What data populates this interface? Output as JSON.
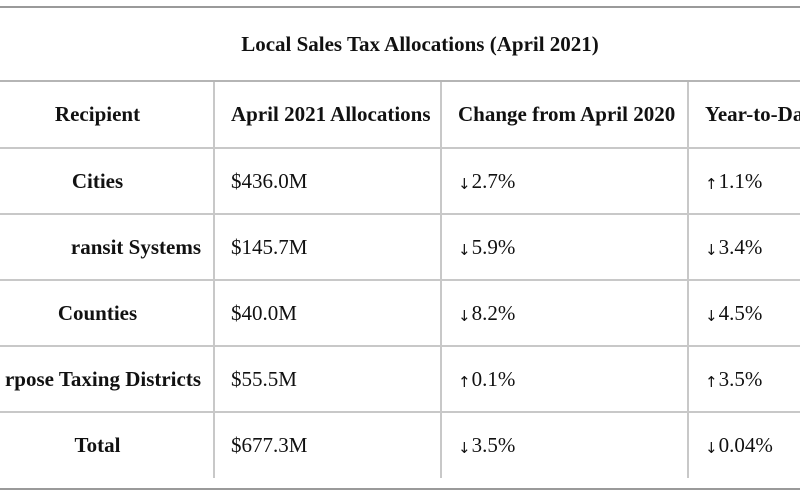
{
  "table": {
    "title": "Local Sales Tax Allocations (April 2021)",
    "headers": [
      "Recipient",
      "April 2021 Allocations",
      "Change from April 2020",
      "Year-to-Da"
    ],
    "rows": [
      {
        "recipient": "Cities",
        "allocation": "$436.0M",
        "change_dir": "down",
        "change_arrow": "↓",
        "change": "2.7%",
        "ytd_dir": "up",
        "ytd_arrow": "↑",
        "ytd": "1.1%"
      },
      {
        "recipient": "ransit Systems",
        "allocation": "$145.7M",
        "change_dir": "down",
        "change_arrow": "↓",
        "change": "5.9%",
        "ytd_dir": "down",
        "ytd_arrow": "↓",
        "ytd": "3.4%"
      },
      {
        "recipient": "Counties",
        "allocation": "$40.0M",
        "change_dir": "down",
        "change_arrow": "↓",
        "change": "8.2%",
        "ytd_dir": "down",
        "ytd_arrow": "↓",
        "ytd": "4.5%"
      },
      {
        "recipient": "rpose Taxing Districts",
        "allocation": "$55.5M",
        "change_dir": "up",
        "change_arrow": "↑",
        "change": "0.1%",
        "ytd_dir": "up",
        "ytd_arrow": "↑",
        "ytd": "3.5%"
      },
      {
        "recipient": "Total",
        "allocation": "$677.3M",
        "change_dir": "down",
        "change_arrow": "↓",
        "change": "3.5%",
        "ytd_dir": "down",
        "ytd_arrow": "↓",
        "ytd": "0.04%"
      }
    ]
  }
}
